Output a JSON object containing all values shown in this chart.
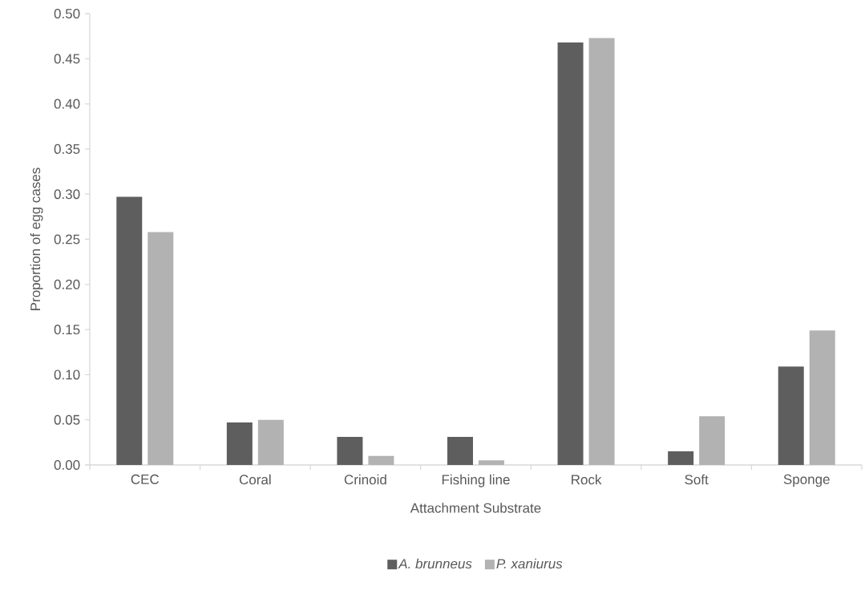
{
  "chart_data": {
    "type": "bar",
    "categories": [
      "CEC",
      "Coral",
      "Crinoid",
      "Fishing line",
      "Rock",
      "Soft",
      "Sponge"
    ],
    "series": [
      {
        "name": "A. brunneus",
        "color": "#5e5e5e",
        "values": [
          0.297,
          0.047,
          0.031,
          0.031,
          0.468,
          0.015,
          0.109
        ]
      },
      {
        "name": "P. xaniurus",
        "color": "#b2b2b2",
        "values": [
          0.258,
          0.05,
          0.01,
          0.005,
          0.473,
          0.054,
          0.149
        ]
      }
    ],
    "xlabel": "Attachment Substrate",
    "ylabel": "Proportion of egg cases",
    "ylim": [
      0,
      0.5
    ],
    "yticks": [
      {
        "value": 0,
        "label": "0.00"
      },
      {
        "value": 0.05,
        "label": "0.05"
      },
      {
        "value": 0.1,
        "label": "0.10"
      },
      {
        "value": 0.15,
        "label": "0.15"
      },
      {
        "value": 0.2,
        "label": "0.20"
      },
      {
        "value": 0.25,
        "label": "0.25"
      },
      {
        "value": 0.3,
        "label": "0.30"
      },
      {
        "value": 0.35,
        "label": "0.35"
      },
      {
        "value": 0.4,
        "label": "0.40"
      },
      {
        "value": 0.45,
        "label": "0.45"
      },
      {
        "value": 0.5,
        "label": "0.50"
      }
    ],
    "grid": false,
    "legend": "bottom"
  }
}
